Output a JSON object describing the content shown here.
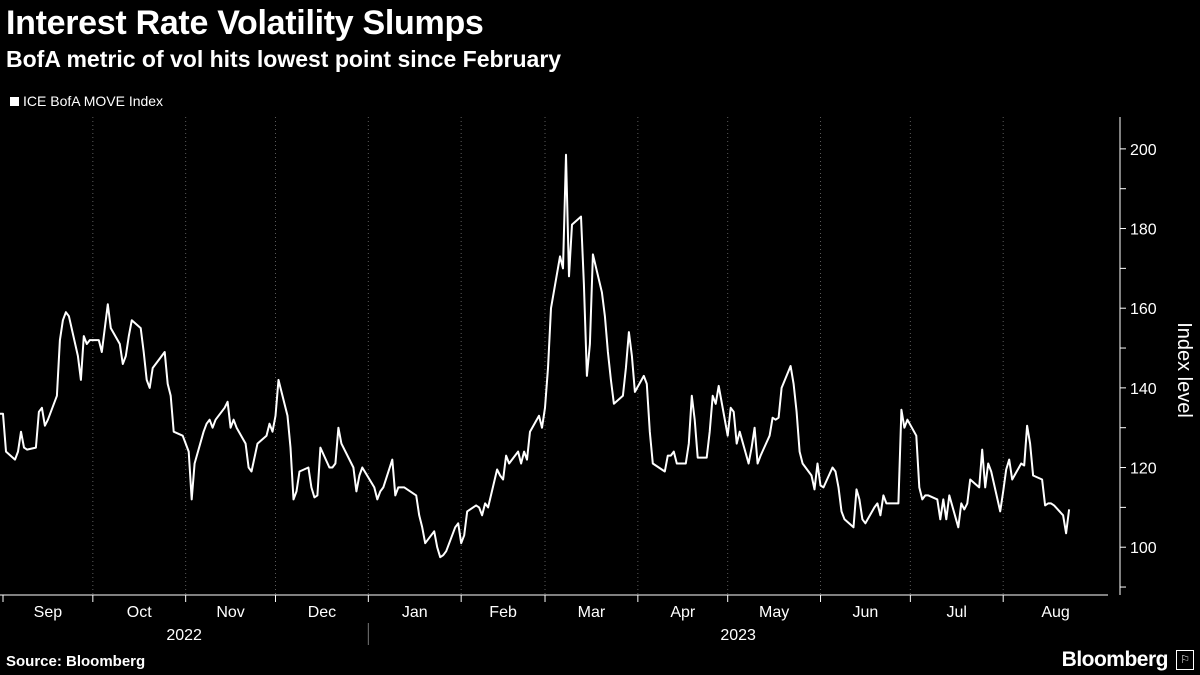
{
  "header": {
    "title": "Interest Rate Volatility Slumps",
    "subtitle": "BofA metric of vol hits lowest point since February"
  },
  "legend": {
    "label": "ICE BofA MOVE Index"
  },
  "footer": {
    "source": "Source: Bloomberg",
    "logo": "Bloomberg",
    "logo_mark": "⚐"
  },
  "colors": {
    "background": "#000000",
    "line": "#ffffff",
    "grid": "#5a5a5a"
  },
  "chart_data": {
    "type": "line",
    "ylabel": "Index level",
    "ylim": [
      88,
      208
    ],
    "yticks": [
      100,
      120,
      140,
      160,
      180,
      200
    ],
    "grid": "vertical",
    "legend_position": "top-left",
    "x_start": "2022-08-31",
    "x_end": "2023-09-05",
    "months": [
      {
        "label": "Sep",
        "date": "2022-09-01"
      },
      {
        "label": "Oct",
        "date": "2022-10-01"
      },
      {
        "label": "Nov",
        "date": "2022-11-01"
      },
      {
        "label": "Dec",
        "date": "2022-12-01"
      },
      {
        "label": "Jan",
        "date": "2023-01-01"
      },
      {
        "label": "Feb",
        "date": "2023-02-01"
      },
      {
        "label": "Mar",
        "date": "2023-03-01"
      },
      {
        "label": "Apr",
        "date": "2023-04-01"
      },
      {
        "label": "May",
        "date": "2023-05-01"
      },
      {
        "label": "Jun",
        "date": "2023-06-01"
      },
      {
        "label": "Jul",
        "date": "2023-07-01"
      },
      {
        "label": "Aug",
        "date": "2023-08-01"
      }
    ],
    "years": [
      {
        "label": "2022",
        "from": "2022-09-01",
        "to": "2022-12-31"
      },
      {
        "label": "2023",
        "from": "2023-01-01",
        "to": "2023-09-05"
      }
    ],
    "series": [
      {
        "name": "ICE BofA MOVE Index",
        "points": [
          [
            "2022-08-31",
            133.5
          ],
          [
            "2022-09-01",
            133.5
          ],
          [
            "2022-09-02",
            124
          ],
          [
            "2022-09-05",
            122
          ],
          [
            "2022-09-06",
            124
          ],
          [
            "2022-09-07",
            129
          ],
          [
            "2022-09-08",
            125
          ],
          [
            "2022-09-09",
            124.5
          ],
          [
            "2022-09-12",
            125
          ],
          [
            "2022-09-13",
            134
          ],
          [
            "2022-09-14",
            135
          ],
          [
            "2022-09-15",
            130.5
          ],
          [
            "2022-09-16",
            132
          ],
          [
            "2022-09-19",
            138
          ],
          [
            "2022-09-20",
            152
          ],
          [
            "2022-09-21",
            157
          ],
          [
            "2022-09-22",
            159
          ],
          [
            "2022-09-23",
            158
          ],
          [
            "2022-09-26",
            148
          ],
          [
            "2022-09-27",
            142
          ],
          [
            "2022-09-28",
            153
          ],
          [
            "2022-09-29",
            151
          ],
          [
            "2022-09-30",
            152
          ],
          [
            "2022-10-03",
            152
          ],
          [
            "2022-10-04",
            149
          ],
          [
            "2022-10-05",
            155
          ],
          [
            "2022-10-06",
            161
          ],
          [
            "2022-10-07",
            155
          ],
          [
            "2022-10-10",
            151
          ],
          [
            "2022-10-11",
            146
          ],
          [
            "2022-10-12",
            148
          ],
          [
            "2022-10-13",
            153
          ],
          [
            "2022-10-14",
            157
          ],
          [
            "2022-10-17",
            155
          ],
          [
            "2022-10-18",
            149
          ],
          [
            "2022-10-19",
            142
          ],
          [
            "2022-10-20",
            140
          ],
          [
            "2022-10-21",
            145
          ],
          [
            "2022-10-24",
            148
          ],
          [
            "2022-10-25",
            149
          ],
          [
            "2022-10-26",
            141
          ],
          [
            "2022-10-27",
            138
          ],
          [
            "2022-10-28",
            129
          ],
          [
            "2022-10-31",
            128
          ],
          [
            "2022-11-01",
            126
          ],
          [
            "2022-11-02",
            124
          ],
          [
            "2022-11-03",
            112
          ],
          [
            "2022-11-04",
            121
          ],
          [
            "2022-11-07",
            129
          ],
          [
            "2022-11-08",
            131
          ],
          [
            "2022-11-09",
            132
          ],
          [
            "2022-11-10",
            130
          ],
          [
            "2022-11-11",
            132
          ],
          [
            "2022-11-14",
            135
          ],
          [
            "2022-11-15",
            136.5
          ],
          [
            "2022-11-16",
            130
          ],
          [
            "2022-11-17",
            132
          ],
          [
            "2022-11-18",
            130
          ],
          [
            "2022-11-21",
            126
          ],
          [
            "2022-11-22",
            120
          ],
          [
            "2022-11-23",
            119
          ],
          [
            "2022-11-25",
            126
          ],
          [
            "2022-11-28",
            128
          ],
          [
            "2022-11-29",
            131
          ],
          [
            "2022-11-30",
            129
          ],
          [
            "2022-12-01",
            133
          ],
          [
            "2022-12-02",
            142
          ],
          [
            "2022-12-05",
            133
          ],
          [
            "2022-12-06",
            125
          ],
          [
            "2022-12-07",
            112
          ],
          [
            "2022-12-08",
            114
          ],
          [
            "2022-12-09",
            119
          ],
          [
            "2022-12-12",
            120
          ],
          [
            "2022-12-13",
            115
          ],
          [
            "2022-12-14",
            112.5
          ],
          [
            "2022-12-15",
            113
          ],
          [
            "2022-12-16",
            125
          ],
          [
            "2022-12-19",
            120
          ],
          [
            "2022-12-20",
            120
          ],
          [
            "2022-12-21",
            121
          ],
          [
            "2022-12-22",
            130
          ],
          [
            "2022-12-23",
            126
          ],
          [
            "2022-12-27",
            120
          ],
          [
            "2022-12-28",
            114
          ],
          [
            "2022-12-29",
            118
          ],
          [
            "2022-12-30",
            120
          ],
          [
            "2023-01-03",
            115
          ],
          [
            "2023-01-04",
            112
          ],
          [
            "2023-01-05",
            114
          ],
          [
            "2023-01-06",
            115
          ],
          [
            "2023-01-09",
            122
          ],
          [
            "2023-01-10",
            113
          ],
          [
            "2023-01-11",
            115
          ],
          [
            "2023-01-12",
            115
          ],
          [
            "2023-01-13",
            115
          ],
          [
            "2023-01-17",
            113
          ],
          [
            "2023-01-18",
            108
          ],
          [
            "2023-01-19",
            105
          ],
          [
            "2023-01-20",
            101
          ],
          [
            "2023-01-23",
            104
          ],
          [
            "2023-01-24",
            100
          ],
          [
            "2023-01-25",
            97.5
          ],
          [
            "2023-01-26",
            98
          ],
          [
            "2023-01-27",
            99
          ],
          [
            "2023-01-30",
            105
          ],
          [
            "2023-01-31",
            106
          ],
          [
            "2023-02-01",
            101
          ],
          [
            "2023-02-02",
            103
          ],
          [
            "2023-02-03",
            109
          ],
          [
            "2023-02-06",
            110.5
          ],
          [
            "2023-02-07",
            110
          ],
          [
            "2023-02-08",
            108
          ],
          [
            "2023-02-09",
            111
          ],
          [
            "2023-02-10",
            110
          ],
          [
            "2023-02-13",
            119.5
          ],
          [
            "2023-02-14",
            118
          ],
          [
            "2023-02-15",
            117
          ],
          [
            "2023-02-16",
            123
          ],
          [
            "2023-02-17",
            121
          ],
          [
            "2023-02-20",
            124
          ],
          [
            "2023-02-21",
            121
          ],
          [
            "2023-02-22",
            124
          ],
          [
            "2023-02-23",
            122
          ],
          [
            "2023-02-24",
            129
          ],
          [
            "2023-02-27",
            133
          ],
          [
            "2023-02-28",
            130
          ],
          [
            "2023-03-01",
            135
          ],
          [
            "2023-03-02",
            145
          ],
          [
            "2023-03-03",
            160
          ],
          [
            "2023-03-06",
            173
          ],
          [
            "2023-03-07",
            170
          ],
          [
            "2023-03-08",
            198.5
          ],
          [
            "2023-03-09",
            168
          ],
          [
            "2023-03-10",
            181
          ],
          [
            "2023-03-13",
            183
          ],
          [
            "2023-03-14",
            166
          ],
          [
            "2023-03-15",
            143
          ],
          [
            "2023-03-16",
            151
          ],
          [
            "2023-03-17",
            173.5
          ],
          [
            "2023-03-20",
            164
          ],
          [
            "2023-03-21",
            158
          ],
          [
            "2023-03-22",
            149
          ],
          [
            "2023-03-23",
            142
          ],
          [
            "2023-03-24",
            136
          ],
          [
            "2023-03-27",
            138
          ],
          [
            "2023-03-28",
            145
          ],
          [
            "2023-03-29",
            154
          ],
          [
            "2023-03-30",
            148
          ],
          [
            "2023-03-31",
            139
          ],
          [
            "2023-04-03",
            143
          ],
          [
            "2023-04-04",
            141
          ],
          [
            "2023-04-05",
            129
          ],
          [
            "2023-04-06",
            121
          ],
          [
            "2023-04-10",
            119
          ],
          [
            "2023-04-11",
            123
          ],
          [
            "2023-04-12",
            123
          ],
          [
            "2023-04-13",
            124
          ],
          [
            "2023-04-14",
            121
          ],
          [
            "2023-04-17",
            121
          ],
          [
            "2023-04-18",
            126
          ],
          [
            "2023-04-19",
            138
          ],
          [
            "2023-04-20",
            132
          ],
          [
            "2023-04-21",
            122.5
          ],
          [
            "2023-04-24",
            122.5
          ],
          [
            "2023-04-25",
            129
          ],
          [
            "2023-04-26",
            138
          ],
          [
            "2023-04-27",
            136
          ],
          [
            "2023-04-28",
            140.5
          ],
          [
            "2023-05-01",
            128
          ],
          [
            "2023-05-02",
            135
          ],
          [
            "2023-05-03",
            134
          ],
          [
            "2023-05-04",
            126
          ],
          [
            "2023-05-05",
            129
          ],
          [
            "2023-05-08",
            121
          ],
          [
            "2023-05-09",
            125
          ],
          [
            "2023-05-10",
            130
          ],
          [
            "2023-05-11",
            121
          ],
          [
            "2023-05-12",
            123
          ],
          [
            "2023-05-15",
            128
          ],
          [
            "2023-05-16",
            132.5
          ],
          [
            "2023-05-17",
            132
          ],
          [
            "2023-05-18",
            132.5
          ],
          [
            "2023-05-19",
            140
          ],
          [
            "2023-05-22",
            145.5
          ],
          [
            "2023-05-23",
            141
          ],
          [
            "2023-05-24",
            134
          ],
          [
            "2023-05-25",
            124
          ],
          [
            "2023-05-26",
            121
          ],
          [
            "2023-05-29",
            118
          ],
          [
            "2023-05-30",
            114.5
          ],
          [
            "2023-05-31",
            121
          ],
          [
            "2023-06-01",
            115.5
          ],
          [
            "2023-06-02",
            115
          ],
          [
            "2023-06-05",
            120
          ],
          [
            "2023-06-06",
            119
          ],
          [
            "2023-06-07",
            115
          ],
          [
            "2023-06-08",
            109
          ],
          [
            "2023-06-09",
            107
          ],
          [
            "2023-06-12",
            105
          ],
          [
            "2023-06-13",
            114.5
          ],
          [
            "2023-06-14",
            112
          ],
          [
            "2023-06-15",
            107
          ],
          [
            "2023-06-16",
            106
          ],
          [
            "2023-06-19",
            110
          ],
          [
            "2023-06-20",
            111
          ],
          [
            "2023-06-21",
            108
          ],
          [
            "2023-06-22",
            113
          ],
          [
            "2023-06-23",
            111
          ],
          [
            "2023-06-26",
            111
          ],
          [
            "2023-06-27",
            111
          ],
          [
            "2023-06-28",
            134.5
          ],
          [
            "2023-06-29",
            130
          ],
          [
            "2023-06-30",
            132
          ],
          [
            "2023-07-03",
            128
          ],
          [
            "2023-07-04",
            115
          ],
          [
            "2023-07-05",
            112
          ],
          [
            "2023-07-06",
            113
          ],
          [
            "2023-07-07",
            113
          ],
          [
            "2023-07-10",
            112
          ],
          [
            "2023-07-11",
            107
          ],
          [
            "2023-07-12",
            112
          ],
          [
            "2023-07-13",
            107
          ],
          [
            "2023-07-14",
            113
          ],
          [
            "2023-07-17",
            105
          ],
          [
            "2023-07-18",
            111
          ],
          [
            "2023-07-19",
            109.5
          ],
          [
            "2023-07-20",
            111
          ],
          [
            "2023-07-21",
            117
          ],
          [
            "2023-07-24",
            115
          ],
          [
            "2023-07-25",
            124.5
          ],
          [
            "2023-07-26",
            115
          ],
          [
            "2023-07-27",
            121
          ],
          [
            "2023-07-28",
            119
          ],
          [
            "2023-07-31",
            109
          ],
          [
            "2023-08-01",
            114
          ],
          [
            "2023-08-02",
            119.5
          ],
          [
            "2023-08-03",
            122
          ],
          [
            "2023-08-04",
            117
          ],
          [
            "2023-08-07",
            121
          ],
          [
            "2023-08-08",
            120.5
          ],
          [
            "2023-08-09",
            130.5
          ],
          [
            "2023-08-10",
            126
          ],
          [
            "2023-08-11",
            118
          ],
          [
            "2023-08-14",
            117
          ],
          [
            "2023-08-15",
            110.5
          ],
          [
            "2023-08-16",
            111
          ],
          [
            "2023-08-17",
            111
          ],
          [
            "2023-08-18",
            110.5
          ],
          [
            "2023-08-21",
            108
          ],
          [
            "2023-08-22",
            103.5
          ],
          [
            "2023-08-23",
            109.5
          ]
        ]
      }
    ]
  }
}
